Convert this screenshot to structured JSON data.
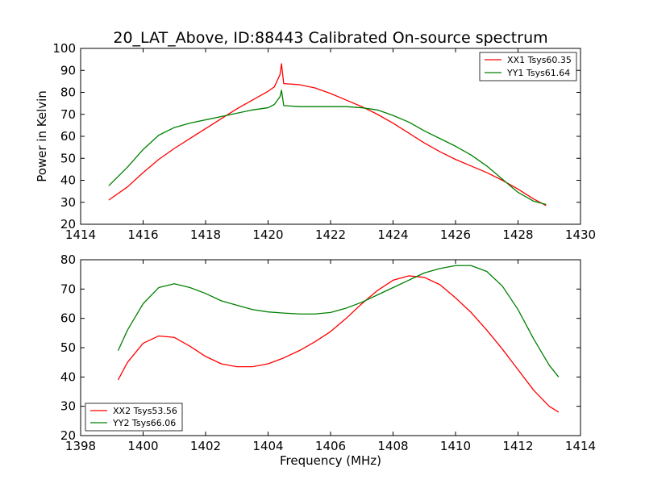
{
  "chart_data": [
    {
      "type": "line",
      "title": "20_LAT_Above, ID:88443 Calibrated On-source spectrum",
      "xlabel": "",
      "ylabel": "Power in Kelvin",
      "xlim": [
        1414,
        1430
      ],
      "ylim": [
        20,
        100
      ],
      "xticks": [
        1414,
        1416,
        1418,
        1420,
        1422,
        1424,
        1426,
        1428,
        1430
      ],
      "yticks": [
        20,
        30,
        40,
        50,
        60,
        70,
        80,
        90,
        100
      ],
      "grid": false,
      "legend_position": "top-right",
      "series": [
        {
          "name": "XX1 Tsys60.35",
          "color": "#ff0000",
          "x": [
            1414.9,
            1415.5,
            1416.0,
            1416.5,
            1417.0,
            1417.5,
            1418.0,
            1418.5,
            1419.0,
            1419.5,
            1420.0,
            1420.2,
            1420.38,
            1420.43,
            1420.5,
            1421.0,
            1421.5,
            1422.0,
            1422.5,
            1423.0,
            1423.5,
            1424.0,
            1424.5,
            1425.0,
            1425.5,
            1426.0,
            1426.5,
            1427.0,
            1427.5,
            1428.0,
            1428.5,
            1428.9
          ],
          "values": [
            31,
            37,
            43.5,
            49.5,
            54.5,
            59,
            63.5,
            68,
            72.5,
            76.5,
            80.5,
            82.5,
            88,
            93,
            84,
            83.5,
            82,
            79.5,
            76.5,
            73.5,
            70,
            66,
            61.5,
            57,
            53,
            49.5,
            46.5,
            43.5,
            40,
            36,
            31.5,
            28.5
          ]
        },
        {
          "name": "YY1 Tsys61.64",
          "color": "#008000",
          "x": [
            1414.9,
            1415.5,
            1416.0,
            1416.5,
            1417.0,
            1417.5,
            1418.0,
            1418.5,
            1419.0,
            1419.5,
            1420.0,
            1420.2,
            1420.38,
            1420.43,
            1420.5,
            1421.0,
            1421.5,
            1422.0,
            1422.5,
            1423.0,
            1423.5,
            1424.0,
            1424.5,
            1425.0,
            1425.5,
            1426.0,
            1426.5,
            1427.0,
            1427.5,
            1428.0,
            1428.5,
            1428.9
          ],
          "values": [
            37.5,
            46,
            54,
            60.5,
            64,
            66,
            67.5,
            69,
            70.5,
            72,
            73,
            74.5,
            78,
            81,
            74,
            73.5,
            73.5,
            73.5,
            73.5,
            73,
            72,
            69.5,
            66.5,
            62.5,
            59,
            55.5,
            51.5,
            46.5,
            40.5,
            34.5,
            30.5,
            29
          ]
        }
      ]
    },
    {
      "type": "line",
      "title": "",
      "xlabel": "Frequency (MHz)",
      "ylabel": "",
      "xlim": [
        1398,
        1414
      ],
      "ylim": [
        20,
        80
      ],
      "xticks": [
        1398,
        1400,
        1402,
        1404,
        1406,
        1408,
        1410,
        1412,
        1414
      ],
      "yticks": [
        20,
        30,
        40,
        50,
        60,
        70,
        80
      ],
      "grid": false,
      "legend_position": "bottom-left",
      "series": [
        {
          "name": "XX2 Tsys53.56",
          "color": "#ff0000",
          "x": [
            1399.2,
            1399.5,
            1400.0,
            1400.5,
            1401.0,
            1401.5,
            1402.0,
            1402.5,
            1403.0,
            1403.5,
            1404.0,
            1404.5,
            1405.0,
            1405.5,
            1406.0,
            1406.5,
            1407.0,
            1407.5,
            1408.0,
            1408.5,
            1409.0,
            1409.5,
            1410.0,
            1410.5,
            1411.0,
            1411.5,
            1412.0,
            1412.5,
            1413.0,
            1413.3
          ],
          "values": [
            39,
            45,
            51.5,
            54,
            53.5,
            50.5,
            47,
            44.5,
            43.5,
            43.5,
            44.5,
            46.5,
            49,
            52,
            55.5,
            60,
            65,
            69.5,
            73,
            74.5,
            74,
            71.5,
            67,
            62,
            56,
            49.5,
            42.5,
            35.5,
            30,
            28
          ]
        },
        {
          "name": "YY2 Tsys66.06",
          "color": "#008000",
          "x": [
            1399.2,
            1399.5,
            1400.0,
            1400.5,
            1401.0,
            1401.5,
            1402.0,
            1402.5,
            1403.0,
            1403.5,
            1404.0,
            1404.5,
            1405.0,
            1405.5,
            1406.0,
            1406.5,
            1407.0,
            1407.5,
            1408.0,
            1408.5,
            1409.0,
            1409.5,
            1410.0,
            1410.5,
            1411.0,
            1411.5,
            1412.0,
            1412.5,
            1413.0,
            1413.3
          ],
          "values": [
            49,
            56,
            65,
            70.5,
            71.8,
            70.5,
            68.5,
            66,
            64.5,
            63,
            62.2,
            61.8,
            61.5,
            61.5,
            62,
            63.5,
            65.5,
            68,
            70.5,
            73,
            75.5,
            77,
            78,
            78,
            76,
            71,
            63,
            53,
            44,
            40
          ]
        }
      ]
    }
  ]
}
